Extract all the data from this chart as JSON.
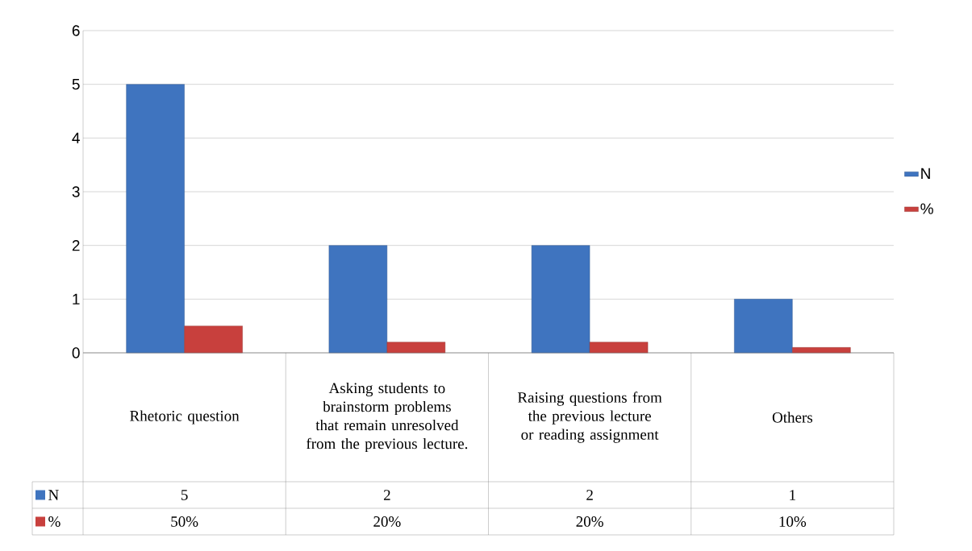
{
  "chart_data": {
    "type": "bar",
    "categories": [
      "Rhetoric question",
      "Asking students to brainstorm problems that remain unresolved from the previous lecture.",
      "Raising questions from the previous lecture or reading assignment",
      "Others"
    ],
    "series": [
      {
        "name": "N",
        "color": "#3f74bf",
        "values": [
          5,
          2,
          2,
          1
        ],
        "value_labels": [
          "5",
          "2",
          "2",
          "1"
        ]
      },
      {
        "name": "%",
        "color": "#c8403d",
        "values": [
          0.5,
          0.2,
          0.2,
          0.1
        ],
        "value_labels": [
          "50%",
          "20%",
          "20%",
          "10%"
        ]
      }
    ],
    "ylim": [
      0,
      6
    ],
    "yticks": [
      0,
      1,
      2,
      3,
      4,
      5,
      6
    ],
    "grid": "y",
    "legend": "right"
  }
}
